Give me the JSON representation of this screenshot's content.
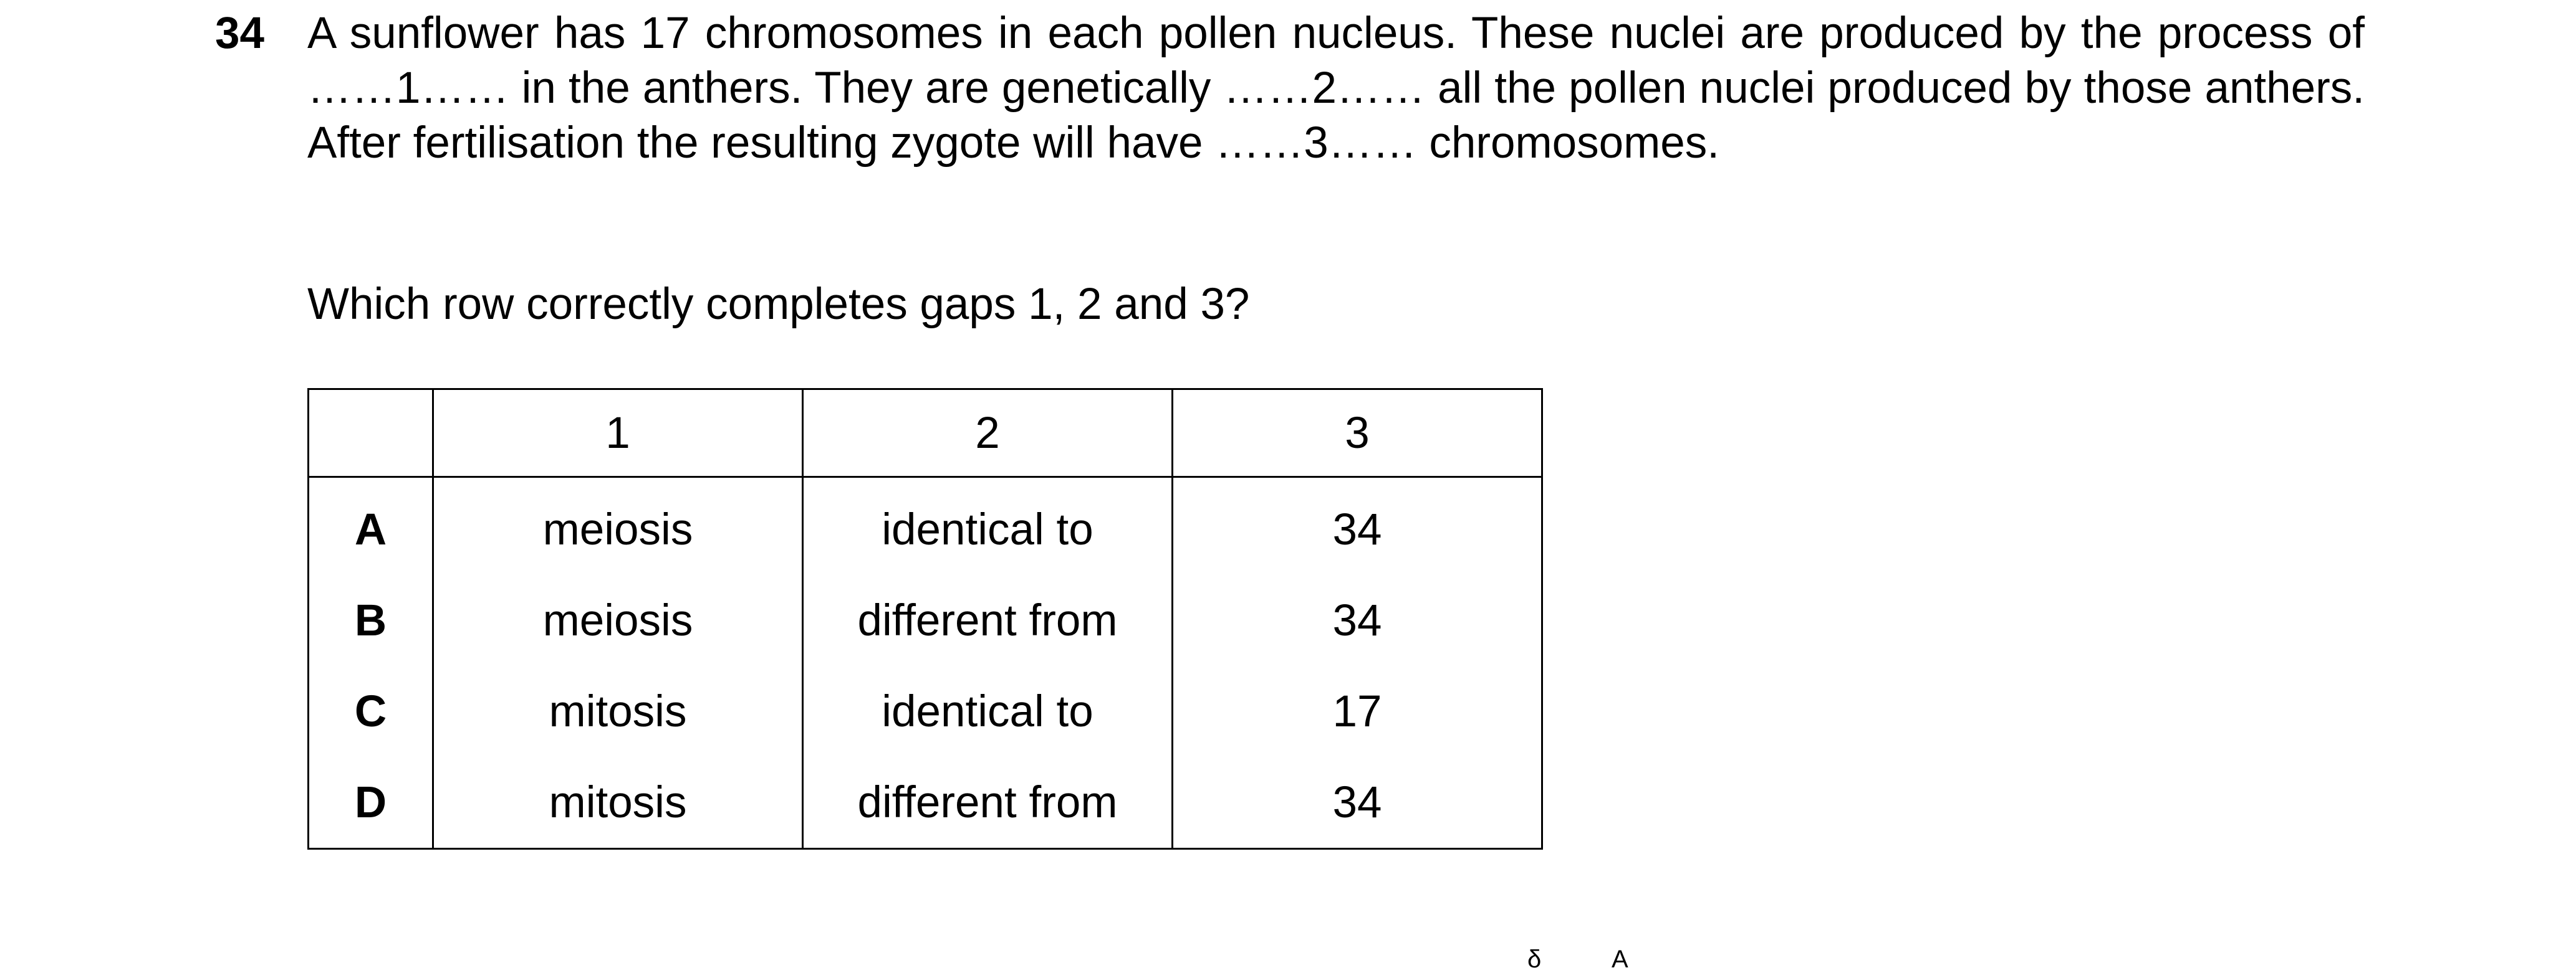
{
  "question": {
    "number": "34",
    "stem": "A sunflower has 17 chromosomes in each pollen nucleus. These nuclei are produced by the process of ……1…… in the anthers. They are genetically ……2…… all the pollen nuclei produced by those anthers. After fertilisation the resulting zygote will have ……3…… chromosomes.",
    "prompt": "Which row correctly completes gaps 1, 2 and 3?"
  },
  "table": {
    "headers": [
      "",
      "1",
      "2",
      "3"
    ],
    "rows": [
      {
        "letter": "A",
        "c1": "meiosis",
        "c2": "identical to",
        "c3": "34"
      },
      {
        "letter": "B",
        "c1": "meiosis",
        "c2": "different from",
        "c3": "34"
      },
      {
        "letter": "C",
        "c1": "mitosis",
        "c2": "identical to",
        "c3": "17"
      },
      {
        "letter": "D",
        "c1": "mitosis",
        "c2": "different from",
        "c3": "34"
      }
    ]
  },
  "footer_fragments": {
    "left": "",
    "right_a": "δ",
    "right_b": "A"
  }
}
